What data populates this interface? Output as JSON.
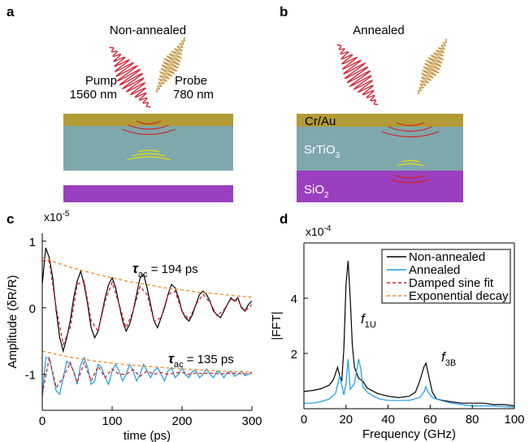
{
  "panels": {
    "a": {
      "label": "a",
      "title": "Non-annealed",
      "pump": "Pump",
      "pump_wavelength": "1560 nm",
      "probe": "Probe",
      "probe_wavelength": "780 nm"
    },
    "b": {
      "label": "b",
      "title": "Annealed",
      "layer_1": "Cr/Au",
      "layer_2": "SrTiO",
      "layer_2_sub": "3",
      "layer_3": "SiO",
      "layer_3_sub": "2"
    }
  },
  "chart_data": [
    {
      "type": "line",
      "panel_label": "c",
      "xlabel": "time (ps)",
      "ylabel": "Amplitude (δR/R)",
      "scale_label": "x10",
      "scale_exponent": "-5",
      "xlim": [
        0,
        300
      ],
      "xticks": [
        0,
        100,
        200,
        300
      ],
      "ylim": [
        -1.54,
        1.12
      ],
      "yticks": [
        -1,
        0,
        1
      ],
      "box": false,
      "annotations": [
        {
          "parts": [
            "τ",
            "ac",
            " = 194 ps"
          ]
        },
        {
          "parts": [
            "τ",
            "ac",
            " = 135 ps"
          ]
        }
      ],
      "series": [
        {
          "name": "Non-annealed",
          "color": "#000000",
          "style": "solid",
          "x": [
            0,
            5,
            10,
            15,
            20,
            25,
            30,
            35,
            40,
            45,
            50,
            55,
            60,
            65,
            70,
            75,
            80,
            85,
            90,
            95,
            100,
            105,
            110,
            115,
            120,
            125,
            130,
            135,
            140,
            145,
            150,
            155,
            160,
            165,
            170,
            175,
            180,
            185,
            190,
            195,
            200,
            205,
            210,
            215,
            220,
            225,
            230,
            235,
            240,
            245,
            250,
            255,
            260,
            265,
            270,
            275,
            280,
            285,
            290,
            295,
            300
          ],
          "values": [
            0.35,
            0.9,
            0.75,
            0.45,
            -0.05,
            -0.45,
            -0.65,
            -0.45,
            -0.2,
            0.15,
            0.4,
            0.55,
            0.35,
            0.05,
            -0.3,
            -0.45,
            -0.35,
            -0.1,
            0.15,
            0.35,
            0.45,
            0.3,
            0.05,
            -0.2,
            -0.35,
            -0.25,
            -0.05,
            0.2,
            0.45,
            0.5,
            0.3,
            0.05,
            -0.2,
            -0.3,
            -0.15,
            0.0,
            0.2,
            0.35,
            0.3,
            0.15,
            -0.05,
            -0.15,
            -0.2,
            -0.1,
            0.05,
            0.2,
            0.25,
            0.2,
            0.1,
            -0.05,
            -0.1,
            -0.15,
            -0.05,
            0.05,
            0.15,
            0.1,
            0.15,
            0.0,
            -0.05,
            0.05,
            0.1
          ]
        },
        {
          "name": "Annealed",
          "color": "#1a9be8",
          "style": "solid",
          "x": [
            0,
            5,
            10,
            15,
            20,
            25,
            30,
            35,
            40,
            45,
            50,
            55,
            60,
            65,
            70,
            75,
            80,
            85,
            90,
            95,
            100,
            105,
            110,
            115,
            120,
            125,
            130,
            135,
            140,
            145,
            150,
            155,
            160,
            165,
            170,
            175,
            180,
            185,
            190,
            195,
            200,
            205,
            210,
            215,
            220,
            225,
            230,
            235,
            240,
            245,
            250,
            255,
            260,
            265,
            270,
            275,
            280,
            285,
            290,
            295,
            300
          ],
          "values": [
            -1.35,
            -0.75,
            -0.75,
            -1.0,
            -1.25,
            -1.3,
            -1.05,
            -0.8,
            -0.85,
            -0.95,
            -1.15,
            -0.85,
            -0.75,
            -0.9,
            -1.15,
            -1.1,
            -0.85,
            -0.9,
            -1.05,
            -1.15,
            -0.95,
            -0.85,
            -0.95,
            -1.1,
            -1.0,
            -0.85,
            -0.95,
            -1.1,
            -1.0,
            -0.85,
            -0.95,
            -1.05,
            -0.95,
            -0.9,
            -1.0,
            -1.1,
            -0.95,
            -0.9,
            -1.05,
            -1.0,
            -0.9,
            -1.0,
            -1.05,
            -0.95,
            -0.95,
            -1.05,
            -1.0,
            -0.92,
            -1.0,
            -1.05,
            -0.95,
            -0.98,
            -1.05,
            -0.97,
            -0.95,
            -1.03,
            -1.0,
            -0.95,
            -1.02,
            -1.0,
            -0.97
          ]
        },
        {
          "name": "Damped sine fit",
          "color": "#d0202a",
          "style": "dashed",
          "x": [
            0,
            10,
            20,
            30,
            40,
            50,
            60,
            70,
            80,
            90,
            100,
            110,
            120,
            130,
            140,
            150,
            160,
            170,
            180,
            190,
            200,
            210,
            220,
            230,
            240,
            250,
            260,
            270,
            280,
            290,
            300
          ],
          "values": [
            0.7,
            0.7,
            0.0,
            -0.55,
            -0.3,
            0.35,
            0.4,
            -0.2,
            -0.35,
            0.1,
            0.38,
            0.05,
            -0.3,
            -0.05,
            0.32,
            0.2,
            -0.2,
            -0.15,
            0.2,
            0.25,
            -0.05,
            -0.18,
            0.05,
            0.2,
            0.08,
            -0.12,
            -0.03,
            0.13,
            0.1,
            -0.05,
            0.05
          ]
        },
        {
          "name": "Damped sine fit",
          "color": "#d0202a",
          "style": "dashed",
          "x": [
            0,
            10,
            20,
            30,
            40,
            50,
            60,
            70,
            80,
            90,
            100,
            110,
            120,
            130,
            140,
            150,
            160,
            170,
            180,
            190,
            200,
            210,
            220,
            230,
            240,
            250,
            260,
            270,
            280,
            290,
            300
          ],
          "values": [
            -1.3,
            -0.75,
            -1.2,
            -1.05,
            -0.82,
            -1.12,
            -0.82,
            -1.1,
            -0.88,
            -1.05,
            -0.92,
            -1.0,
            -1.0,
            -0.93,
            -1.03,
            -0.95,
            -1.0,
            -0.97,
            -1.0,
            -0.98,
            -0.97,
            -1.0,
            -0.98,
            -0.99,
            -0.98,
            -0.99,
            -0.99,
            -0.98,
            -0.99,
            -0.99,
            -0.98
          ]
        },
        {
          "name": "Exponential decay",
          "color": "#f08a24",
          "style": "dashed",
          "x": [
            0,
            25,
            50,
            75,
            100,
            125,
            150,
            175,
            200,
            225,
            250,
            275,
            300
          ],
          "values": [
            0.75,
            0.66,
            0.58,
            0.51,
            0.45,
            0.39,
            0.35,
            0.3,
            0.27,
            0.23,
            0.21,
            0.18,
            0.16
          ]
        },
        {
          "name": "Exponential decay",
          "color": "#f08a24",
          "style": "dashed",
          "x": [
            0,
            25,
            50,
            75,
            100,
            125,
            150,
            175,
            200,
            225,
            250,
            275,
            300
          ],
          "values": [
            -0.65,
            -0.71,
            -0.76,
            -0.8,
            -0.83,
            -0.86,
            -0.88,
            -0.9,
            -0.92,
            -0.93,
            -0.95,
            -0.96,
            -0.96
          ]
        }
      ]
    },
    {
      "type": "line",
      "panel_label": "d",
      "xlabel": "Frequency (GHz)",
      "ylabel": "|FFT|",
      "scale_label": "x10",
      "scale_exponent": "-4",
      "xlim": [
        0,
        100
      ],
      "xticks": [
        0,
        20,
        40,
        60,
        80,
        100
      ],
      "ylim": [
        0,
        6
      ],
      "yticks": [
        2,
        4
      ],
      "box": true,
      "annotations": [
        {
          "parts": [
            "f",
            "1U",
            ""
          ]
        },
        {
          "parts": [
            "f",
            "3B",
            ""
          ]
        }
      ],
      "series": [
        {
          "name": "Non-annealed",
          "color": "#000000",
          "style": "solid",
          "x": [
            0,
            4,
            8,
            12,
            14,
            16,
            17,
            18,
            19,
            20,
            21,
            22,
            23,
            24,
            26,
            28,
            30,
            35,
            40,
            45,
            50,
            53,
            55,
            57,
            58,
            59,
            61,
            63,
            66,
            70,
            75,
            80,
            85,
            90,
            95,
            100
          ],
          "values": [
            0.62,
            0.66,
            0.72,
            0.85,
            1.05,
            1.5,
            1.2,
            1.0,
            2.2,
            4.5,
            5.35,
            4.0,
            2.3,
            1.5,
            1.1,
            1.0,
            0.75,
            0.55,
            0.45,
            0.4,
            0.45,
            0.6,
            1.0,
            1.5,
            1.65,
            1.3,
            0.6,
            0.35,
            0.3,
            0.25,
            0.2,
            0.2,
            0.2,
            0.15,
            0.15,
            0.1
          ]
        },
        {
          "name": "Annealed",
          "color": "#1a9be8",
          "style": "solid",
          "x": [
            0,
            4,
            8,
            12,
            15,
            17,
            19,
            20,
            21,
            22,
            24,
            26,
            27,
            28,
            30,
            33,
            36,
            40,
            45,
            50,
            55,
            57,
            58,
            59,
            61,
            65,
            70,
            80,
            90,
            100
          ],
          "values": [
            0.2,
            0.2,
            0.25,
            0.35,
            0.55,
            1.2,
            0.5,
            0.9,
            1.8,
            0.7,
            0.9,
            1.8,
            1.45,
            0.8,
            0.6,
            0.45,
            0.35,
            0.3,
            0.3,
            0.3,
            0.4,
            0.6,
            0.8,
            0.6,
            0.4,
            0.3,
            0.2,
            0.1,
            0.1,
            0.05
          ]
        }
      ],
      "legend": [
        {
          "name": "Non-annealed",
          "color": "#000000",
          "style": "solid"
        },
        {
          "name": "Annealed",
          "color": "#1a9be8",
          "style": "solid"
        },
        {
          "name": "Damped sine fit",
          "color": "#d0202a",
          "style": "dashed"
        },
        {
          "name": "Exponential decay",
          "color": "#f08a24",
          "style": "dashed"
        }
      ]
    }
  ]
}
